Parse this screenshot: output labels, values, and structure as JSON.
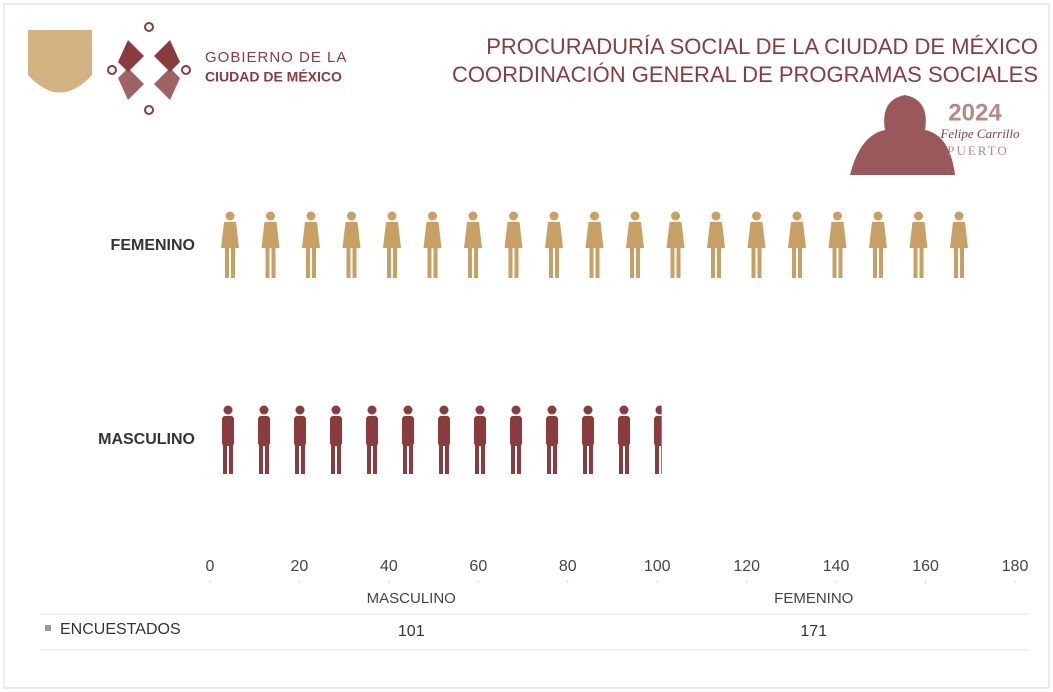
{
  "header": {
    "gov_line1": "GOBIERNO DE LA",
    "gov_line2": "CIUDAD DE MÉXICO",
    "title_line1": "PROCURADURÍA SOCIAL DE LA CIUDAD DE MÉXICO",
    "title_line2": "COORDINACIÓN GENERAL DE PROGRAMAS SOCIALES",
    "badge_year": "2024",
    "badge_name": "Felipe Carrillo",
    "badge_surname": "PUERTO"
  },
  "chart_data": {
    "type": "bar",
    "orientation": "horizontal",
    "categories": [
      "MASCULINO",
      "FEMENINO"
    ],
    "series": [
      {
        "name": "ENCUESTADOS",
        "colors": [
          "#8a3b3e",
          "#c9a063"
        ],
        "values": [
          101,
          171
        ]
      }
    ],
    "xlim": [
      0,
      180
    ],
    "xticks": [
      0,
      20,
      40,
      60,
      80,
      100,
      120,
      140,
      160,
      180
    ],
    "data_table": true
  }
}
